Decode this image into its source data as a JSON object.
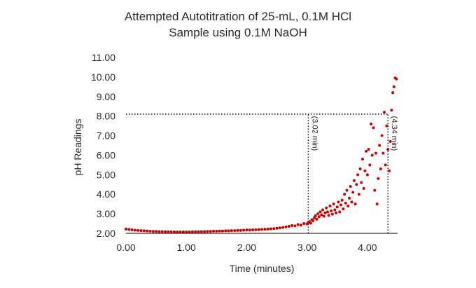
{
  "chart_data": {
    "type": "scatter",
    "title_lines": [
      "Attempted Autotitration of 25-mL, 0.1M HCl",
      "Sample using 0.1M NaOH"
    ],
    "xlabel": "Time (minutes)",
    "ylabel": "pH Readings",
    "xlim": [
      0,
      4.5
    ],
    "ylim": [
      2.0,
      11.0
    ],
    "x_ticks": [
      0,
      1,
      2,
      3,
      4
    ],
    "x_tick_labels": [
      "0.00",
      "1.00",
      "2.00",
      "3.00",
      "4.00"
    ],
    "y_ticks": [
      2,
      3,
      4,
      5,
      6,
      7,
      8,
      9,
      10,
      11
    ],
    "y_tick_labels": [
      "2.00",
      "3.00",
      "4.00",
      "5.00",
      "6.00",
      "7.00",
      "8.00",
      "9.00",
      "10.00",
      "11.00"
    ],
    "grid": false,
    "marker_color": "#c00000",
    "series": [
      {
        "points": [
          [
            0.0,
            2.22
          ],
          [
            0.05,
            2.2
          ],
          [
            0.1,
            2.18
          ],
          [
            0.15,
            2.16
          ],
          [
            0.2,
            2.15
          ],
          [
            0.25,
            2.14
          ],
          [
            0.3,
            2.13
          ],
          [
            0.35,
            2.12
          ],
          [
            0.4,
            2.11
          ],
          [
            0.45,
            2.1
          ],
          [
            0.5,
            2.1
          ],
          [
            0.55,
            2.09
          ],
          [
            0.6,
            2.09
          ],
          [
            0.65,
            2.08
          ],
          [
            0.7,
            2.08
          ],
          [
            0.75,
            2.08
          ],
          [
            0.8,
            2.07
          ],
          [
            0.85,
            2.07
          ],
          [
            0.9,
            2.07
          ],
          [
            0.95,
            2.07
          ],
          [
            1.0,
            2.07
          ],
          [
            1.05,
            2.07
          ],
          [
            1.1,
            2.08
          ],
          [
            1.15,
            2.08
          ],
          [
            1.2,
            2.08
          ],
          [
            1.25,
            2.09
          ],
          [
            1.3,
            2.09
          ],
          [
            1.35,
            2.1
          ],
          [
            1.4,
            2.1
          ],
          [
            1.45,
            2.11
          ],
          [
            1.5,
            2.11
          ],
          [
            1.55,
            2.12
          ],
          [
            1.6,
            2.12
          ],
          [
            1.65,
            2.13
          ],
          [
            1.7,
            2.13
          ],
          [
            1.75,
            2.14
          ],
          [
            1.8,
            2.14
          ],
          [
            1.85,
            2.15
          ],
          [
            1.9,
            2.15
          ],
          [
            1.95,
            2.16
          ],
          [
            2.0,
            2.17
          ],
          [
            2.05,
            2.17
          ],
          [
            2.1,
            2.18
          ],
          [
            2.15,
            2.19
          ],
          [
            2.2,
            2.19
          ],
          [
            2.25,
            2.2
          ],
          [
            2.3,
            2.21
          ],
          [
            2.35,
            2.22
          ],
          [
            2.4,
            2.23
          ],
          [
            2.45,
            2.24
          ],
          [
            2.5,
            2.26
          ],
          [
            2.55,
            2.28
          ],
          [
            2.6,
            2.3
          ],
          [
            2.65,
            2.33
          ],
          [
            2.7,
            2.36
          ],
          [
            2.75,
            2.4
          ],
          [
            2.8,
            2.38
          ],
          [
            2.85,
            2.45
          ],
          [
            2.9,
            2.42
          ],
          [
            2.95,
            2.5
          ],
          [
            3.0,
            2.48
          ],
          [
            3.02,
            2.56
          ],
          [
            3.04,
            2.6
          ],
          [
            3.06,
            2.52
          ],
          [
            3.08,
            2.7
          ],
          [
            3.1,
            2.64
          ],
          [
            3.12,
            2.8
          ],
          [
            3.14,
            2.9
          ],
          [
            3.16,
            2.72
          ],
          [
            3.18,
            3.0
          ],
          [
            3.2,
            2.85
          ],
          [
            3.22,
            3.1
          ],
          [
            3.24,
            2.95
          ],
          [
            3.26,
            3.2
          ],
          [
            3.28,
            2.88
          ],
          [
            3.3,
            3.05
          ],
          [
            3.32,
            3.3
          ],
          [
            3.34,
            3.1
          ],
          [
            3.36,
            2.92
          ],
          [
            3.38,
            3.4
          ],
          [
            3.4,
            3.15
          ],
          [
            3.42,
            2.98
          ],
          [
            3.44,
            3.5
          ],
          [
            3.46,
            3.2
          ],
          [
            3.48,
            3.05
          ],
          [
            3.5,
            3.35
          ],
          [
            3.52,
            3.6
          ],
          [
            3.54,
            3.1
          ],
          [
            3.56,
            3.45
          ],
          [
            3.58,
            3.7
          ],
          [
            3.6,
            3.25
          ],
          [
            3.62,
            4.0
          ],
          [
            3.64,
            3.55
          ],
          [
            3.66,
            4.2
          ],
          [
            3.68,
            3.4
          ],
          [
            3.7,
            3.8
          ],
          [
            3.72,
            4.4
          ],
          [
            3.74,
            3.6
          ],
          [
            3.76,
            4.1
          ],
          [
            3.78,
            4.7
          ],
          [
            3.8,
            3.5
          ],
          [
            3.82,
            4.5
          ],
          [
            3.84,
            5.0
          ],
          [
            3.86,
            4.0
          ],
          [
            3.88,
            5.3
          ],
          [
            3.9,
            4.6
          ],
          [
            3.92,
            5.8
          ],
          [
            3.94,
            4.3
          ],
          [
            3.96,
            5.2
          ],
          [
            3.98,
            6.2
          ],
          [
            4.0,
            5.0
          ],
          [
            4.02,
            6.3
          ],
          [
            4.04,
            5.5
          ],
          [
            4.06,
            7.6
          ],
          [
            4.08,
            6.0
          ],
          [
            4.1,
            7.4
          ],
          [
            4.12,
            4.2
          ],
          [
            4.14,
            6.1
          ],
          [
            4.16,
            3.5
          ],
          [
            4.18,
            4.8
          ],
          [
            4.2,
            6.5
          ],
          [
            4.22,
            5.3
          ],
          [
            4.24,
            7.0
          ],
          [
            4.26,
            6.1
          ],
          [
            4.28,
            8.2
          ],
          [
            4.3,
            5.5
          ],
          [
            4.32,
            7.5
          ],
          [
            4.34,
            6.3
          ],
          [
            4.36,
            5.2
          ],
          [
            4.38,
            6.7
          ],
          [
            4.4,
            8.3
          ],
          [
            4.42,
            9.2
          ],
          [
            4.44,
            9.5
          ],
          [
            4.46,
            9.95
          ],
          [
            4.48,
            9.9
          ]
        ]
      }
    ],
    "reference_lines": [
      {
        "orientation": "horizontal",
        "y": 8.1,
        "x_from": 0,
        "x_to": 4.34,
        "style": "dotted"
      },
      {
        "orientation": "vertical",
        "x": 3.02,
        "y_from": 2.0,
        "y_to": 8.1,
        "style": "dotted"
      },
      {
        "orientation": "vertical",
        "x": 4.34,
        "y_from": 2.0,
        "y_to": 8.1,
        "style": "dotted"
      }
    ],
    "annotations": [
      {
        "text": "(3.02 min)",
        "x": 3.02,
        "y": 8.0
      },
      {
        "text": "(4.34 min)",
        "x": 4.34,
        "y": 8.0
      }
    ]
  }
}
